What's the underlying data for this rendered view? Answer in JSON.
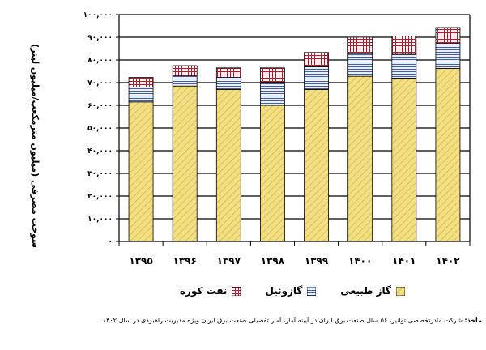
{
  "chart_data": {
    "type": "bar",
    "stacked": true,
    "categories": [
      "۱۳۹۵",
      "۱۳۹۶",
      "۱۳۹۷",
      "۱۳۹۸",
      "۱۳۹۹",
      "۱۴۰۰",
      "۱۴۰۱",
      "۱۴۰۲"
    ],
    "series": [
      {
        "name": "گاز طبیعی",
        "values": [
          61500,
          68500,
          67000,
          60000,
          67000,
          72800,
          72000,
          76300
        ],
        "color": "#f0dc7e",
        "pattern": "diagonal"
      },
      {
        "name": "گازوئیل",
        "values": [
          6500,
          4500,
          5300,
          10200,
          10000,
          10000,
          10500,
          11000
        ],
        "color": "#3f5fae",
        "pattern": "horizontal"
      },
      {
        "name": "نفت کوره",
        "values": [
          4300,
          4500,
          4200,
          6300,
          6300,
          7200,
          8000,
          7000
        ],
        "color": "#b81c2c",
        "pattern": "grid"
      }
    ],
    "ylabel": "سوخت مصرفی (میلیون مترمکعب/میلیون لیتر)",
    "ylim": [
      0,
      100000
    ],
    "y_ticks": [
      "۰",
      "۱۰,۰۰۰",
      "۲۰,۰۰۰",
      "۳۰,۰۰۰",
      "۴۰,۰۰۰",
      "۵۰,۰۰۰",
      "۶۰,۰۰۰",
      "۷۰,۰۰۰",
      "۸۰,۰۰۰",
      "۹۰,۰۰۰",
      "۱۰۰,۰۰۰"
    ],
    "grid": true,
    "legend_position": "bottom"
  },
  "legend": [
    "گاز طبیعی",
    "گازوئیل",
    "نفت کوره"
  ],
  "source": {
    "label": "مأخذ:",
    "text": " شرکت مادرتخصصی توانیر، ۵۶ سال صنعت برق ایران در آیینه آمار، آمار تفصیلی صنعت برق ایران ویژه مدیریت راهبردی در سال ۱۴۰۲."
  }
}
